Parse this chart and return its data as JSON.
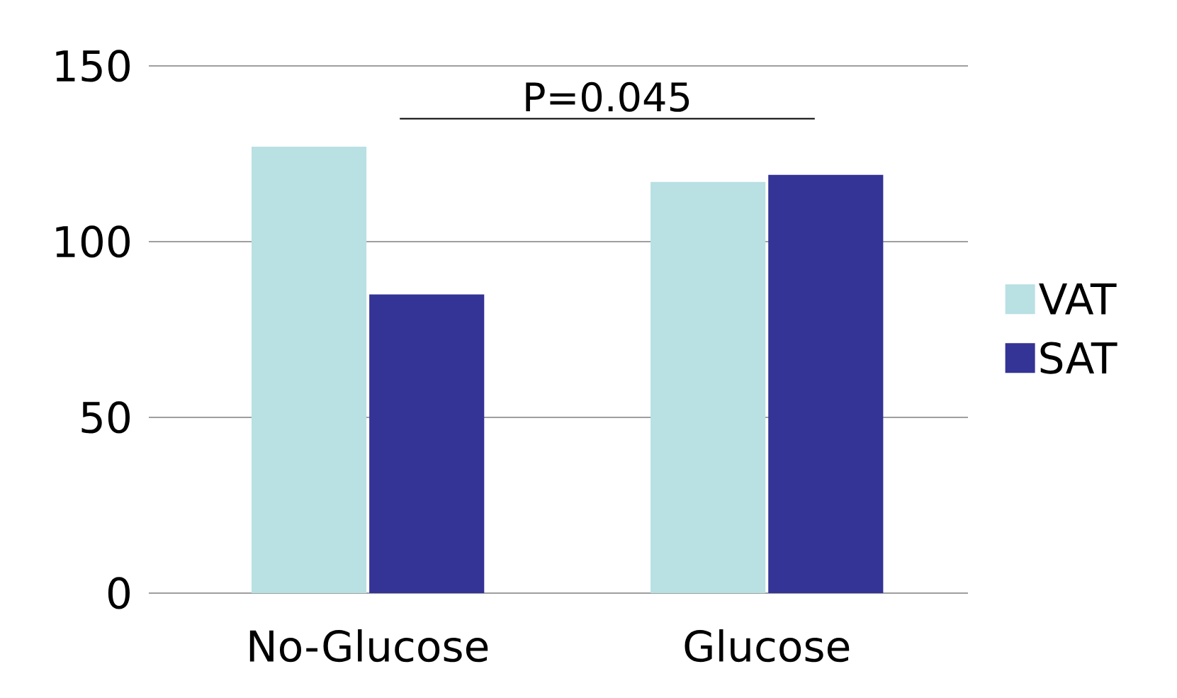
{
  "chart_data": {
    "type": "bar",
    "categories": [
      "No-Glucose",
      "Glucose"
    ],
    "series": [
      {
        "name": "VAT",
        "color": "#b9e0e3",
        "values": [
          127,
          117
        ]
      },
      {
        "name": "SAT",
        "color": "#343396",
        "values": [
          85,
          119
        ]
      }
    ],
    "ylim": [
      0,
      150
    ],
    "yticks": [
      0,
      50,
      100,
      150
    ],
    "grid": "y",
    "legend": "right",
    "annotations": [
      "P=0.045"
    ]
  }
}
